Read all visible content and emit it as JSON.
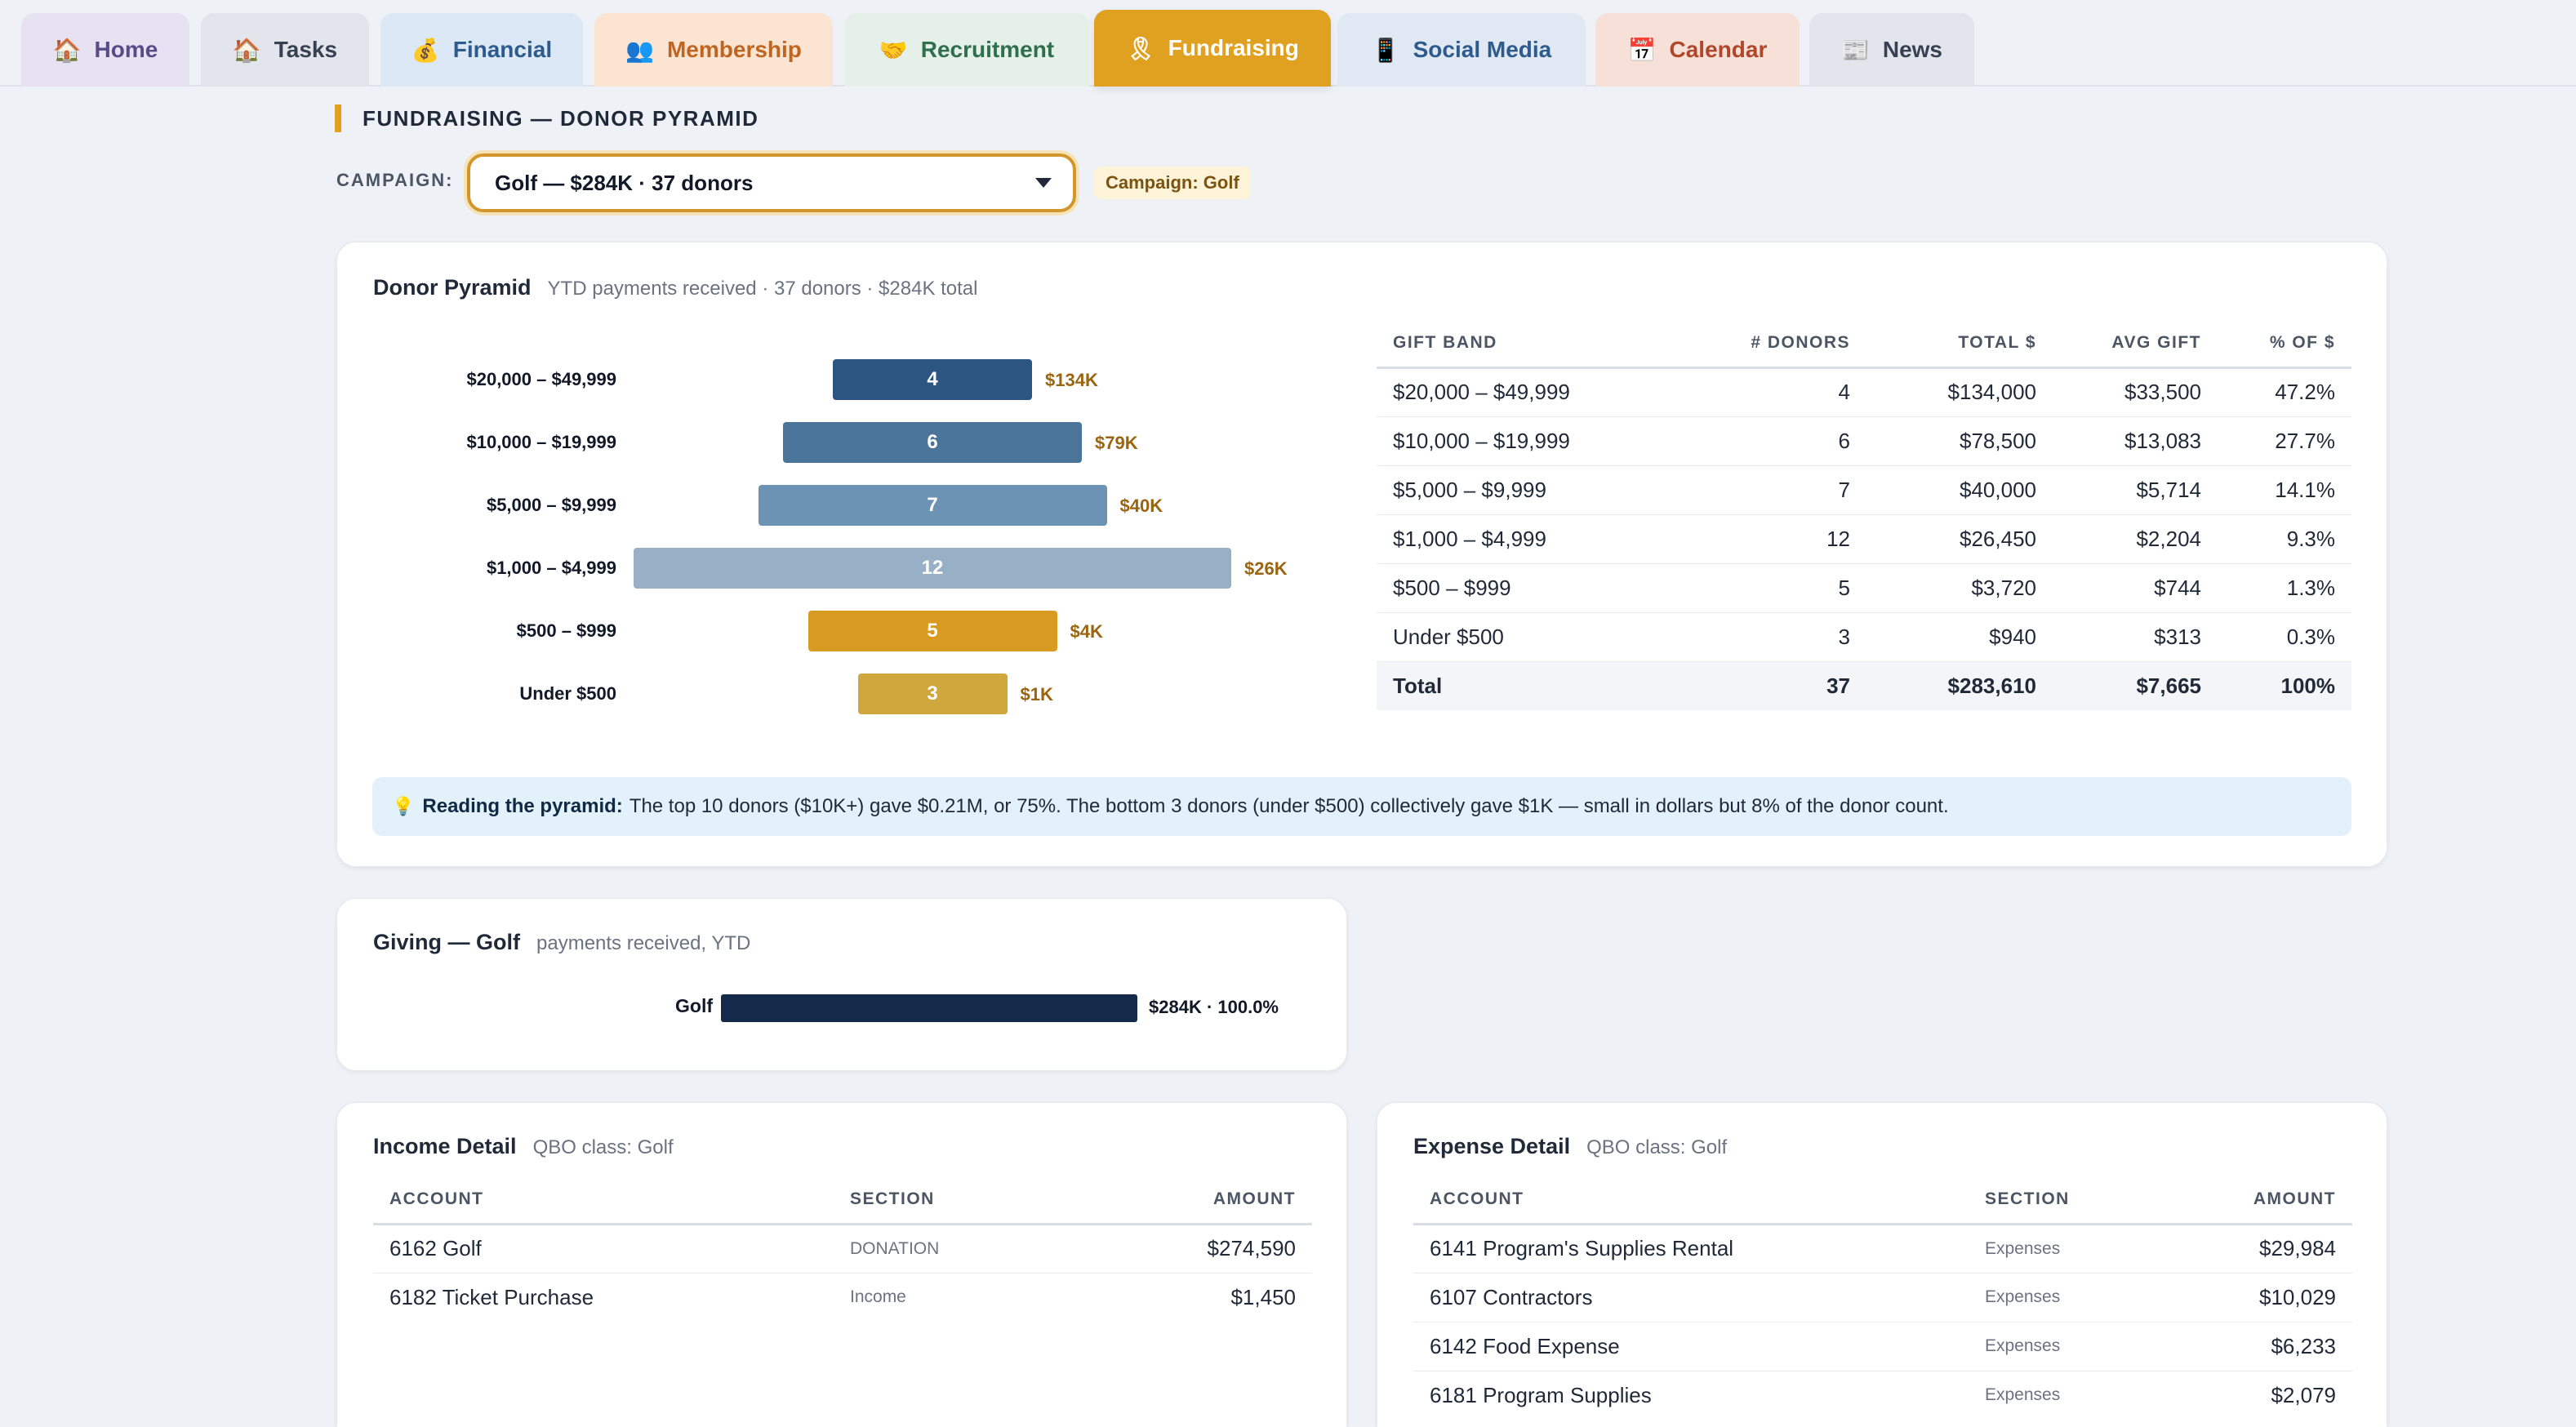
{
  "tabs": [
    {
      "label": "Home",
      "icon": "🏠",
      "bg": "#e6e2f1",
      "color": "#5a4a87"
    },
    {
      "label": "Tasks",
      "icon": "🏠",
      "bg": "#e2e5ec",
      "color": "#374151"
    },
    {
      "label": "Financial",
      "icon": "💰",
      "bg": "#dde8f6",
      "color": "#2d5b8e"
    },
    {
      "label": "Membership",
      "icon": "👥",
      "bg": "#fbe4d2",
      "color": "#c0651f"
    },
    {
      "label": "Recruitment",
      "icon": "🤝",
      "bg": "#e4f0e8",
      "color": "#2f6f4d"
    },
    {
      "label": "Fundraising",
      "icon": "🎗",
      "bg": "#e0a020",
      "color": "#ffffff",
      "active": true
    },
    {
      "label": "Social Media",
      "icon": "📱",
      "bg": "#dfe8f3",
      "color": "#2d5b8e"
    },
    {
      "label": "Calendar",
      "icon": "📅",
      "bg": "#f6e0d8",
      "color": "#b0472a"
    },
    {
      "label": "News",
      "icon": "📰",
      "bg": "#e2e5ec",
      "color": "#374151"
    }
  ],
  "header": {
    "title": "FUNDRAISING — DONOR PYRAMID",
    "campaign_label": "CAMPAIGN:",
    "campaign_value": "Golf — $284K · 37 donors",
    "campaign_badge": "Campaign: Golf"
  },
  "pyramid_card": {
    "title": "Donor Pyramid",
    "subtitle": "YTD payments received · 37 donors · $284K total",
    "tip_lead": "Reading the pyramid:",
    "tip_text": "The top 10 donors ($10K+) gave $0.21M, or 75%. The bottom 3 donors (under $500) collectively gave $1K — small in dollars but 8% of the donor count."
  },
  "chart_data": {
    "type": "bar",
    "orientation": "horizontal-centered",
    "categories": [
      "$20,000 – $49,999",
      "$10,000 – $19,999",
      "$5,000 – $9,999",
      "$1,000 – $4,999",
      "$500 – $999",
      "Under $500"
    ],
    "values": [
      4,
      6,
      7,
      12,
      5,
      3
    ],
    "value_labels": [
      "$134K",
      "$79K",
      "$40K",
      "$26K",
      "$4K",
      "$1K"
    ],
    "colors": [
      "#2c5582",
      "#4a7499",
      "#6d93b4",
      "#97b0c6",
      "#d99a22",
      "#cfa73c"
    ]
  },
  "band_table": {
    "headers": [
      "GIFT BAND",
      "# DONORS",
      "TOTAL $",
      "AVG GIFT",
      "% OF $"
    ],
    "rows": [
      [
        "$20,000 – $49,999",
        "4",
        "$134,000",
        "$33,500",
        "47.2%"
      ],
      [
        "$10,000 – $19,999",
        "6",
        "$78,500",
        "$13,083",
        "27.7%"
      ],
      [
        "$5,000 – $9,999",
        "7",
        "$40,000",
        "$5,714",
        "14.1%"
      ],
      [
        "$1,000 – $4,999",
        "12",
        "$26,450",
        "$2,204",
        "9.3%"
      ],
      [
        "$500 – $999",
        "5",
        "$3,720",
        "$744",
        "1.3%"
      ],
      [
        "Under $500",
        "3",
        "$940",
        "$313",
        "0.3%"
      ]
    ],
    "total": [
      "Total",
      "37",
      "$283,610",
      "$7,665",
      "100%"
    ]
  },
  "giving_card": {
    "title": "Giving — Golf",
    "subtitle": "payments received, YTD",
    "bar_label": "Golf",
    "bar_value": "$284K · 100.0%",
    "bar_fraction": 1.0
  },
  "income_card": {
    "title": "Income Detail",
    "subtitle": "QBO class: Golf",
    "headers": [
      "ACCOUNT",
      "SECTION",
      "AMOUNT"
    ],
    "rows": [
      [
        "6162 Golf",
        "DONATION",
        "$274,590"
      ],
      [
        "6182 Ticket Purchase",
        "Income",
        "$1,450"
      ]
    ]
  },
  "expense_card": {
    "title": "Expense Detail",
    "subtitle": "QBO class: Golf",
    "headers": [
      "ACCOUNT",
      "SECTION",
      "AMOUNT"
    ],
    "rows": [
      [
        "6141 Program's Supplies Rental",
        "Expenses",
        "$29,984"
      ],
      [
        "6107 Contractors",
        "Expenses",
        "$10,029"
      ],
      [
        "6142 Food Expense",
        "Expenses",
        "$6,233"
      ],
      [
        "6181 Program Supplies",
        "Expenses",
        "$2,079"
      ]
    ]
  }
}
